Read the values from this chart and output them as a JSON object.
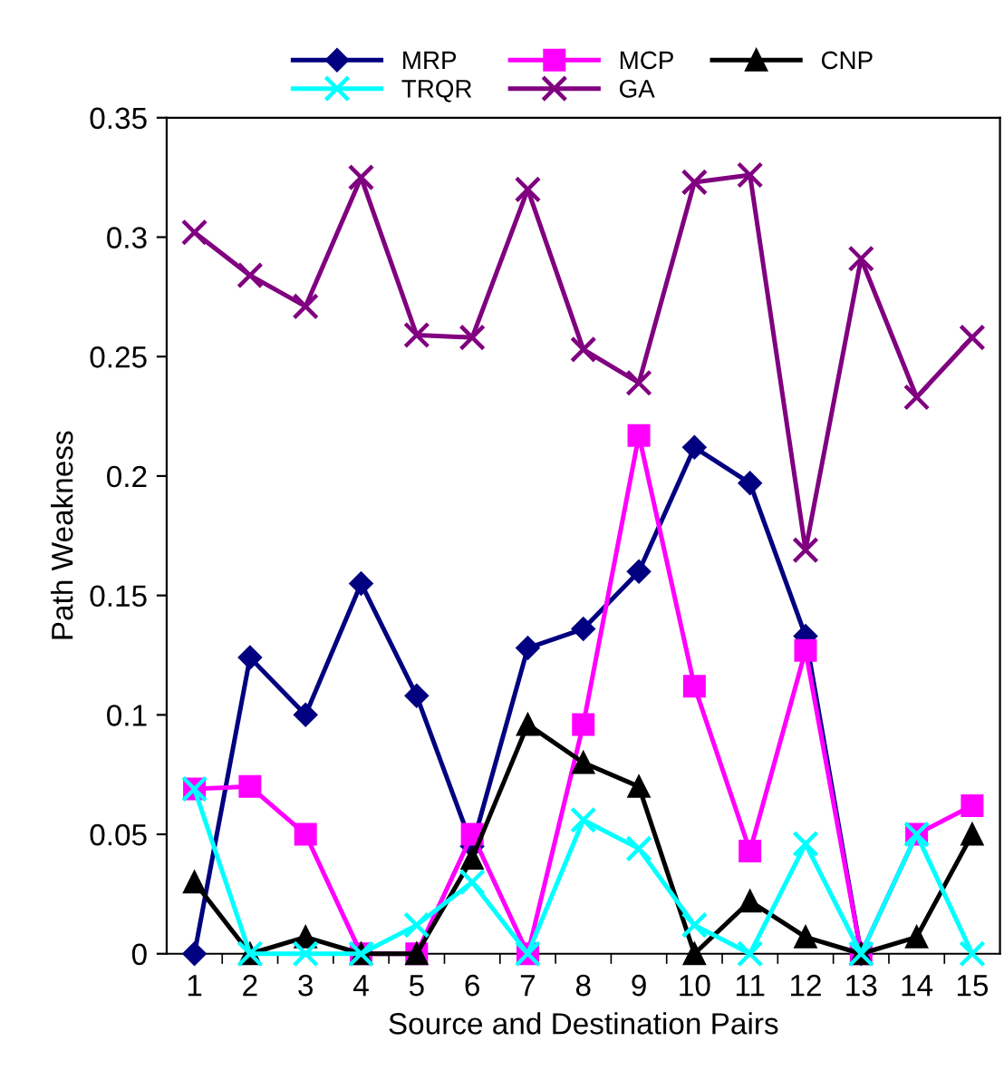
{
  "chart_data": {
    "type": "line",
    "xlabel": "Source and Destination Pairs",
    "ylabel": "Path Weakness",
    "categories": [
      "1",
      "2",
      "3",
      "4",
      "5",
      "6",
      "7",
      "8",
      "9",
      "10",
      "11",
      "12",
      "13",
      "14",
      "15"
    ],
    "ylim": [
      0,
      0.35
    ],
    "yticks": [
      0,
      0.05,
      0.1,
      0.15,
      0.2,
      0.25,
      0.3,
      0.35
    ],
    "grid": false,
    "legend": "top",
    "series": [
      {
        "name": "MRP",
        "color": "#000080",
        "marker": "diamond",
        "values": [
          0,
          0.124,
          0.1,
          0.155,
          0.108,
          0.045,
          0.128,
          0.136,
          0.16,
          0.212,
          0.197,
          0.133,
          0,
          null,
          null
        ]
      },
      {
        "name": "MCP",
        "color": "#ff00ff",
        "marker": "square",
        "values": [
          0.069,
          0.07,
          0.05,
          0,
          0,
          0.05,
          0,
          0.096,
          0.217,
          0.112,
          0.043,
          0.127,
          0,
          0.05,
          0.062
        ]
      },
      {
        "name": "CNP",
        "color": "#000000",
        "marker": "triangle",
        "values": [
          0.03,
          0,
          0.007,
          0,
          0,
          0.04,
          0.096,
          0.08,
          0.07,
          0,
          0.022,
          0.007,
          0,
          0.007,
          0.05
        ]
      },
      {
        "name": "TRQR",
        "color": "#00ffff",
        "marker": "cross",
        "values": [
          0.069,
          0,
          0,
          0,
          0.012,
          0.03,
          0,
          0.056,
          0.044,
          0.012,
          0,
          0.046,
          0,
          0.05,
          0
        ]
      },
      {
        "name": "GA",
        "color": "#800080",
        "marker": "cross",
        "values": [
          0.302,
          0.284,
          0.271,
          0.325,
          0.259,
          0.258,
          0.32,
          0.253,
          0.239,
          0.323,
          0.326,
          0.169,
          0.291,
          0.233,
          0.258
        ]
      }
    ]
  }
}
